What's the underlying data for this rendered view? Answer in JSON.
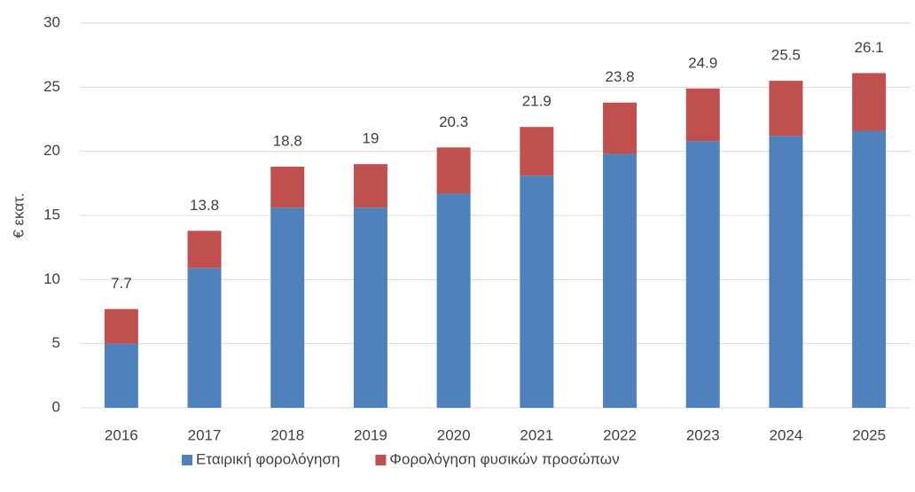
{
  "chart_data": {
    "type": "stacked_bar",
    "y_label": "€ εκατ.",
    "categories": [
      "2016",
      "2017",
      "2018",
      "2019",
      "2020",
      "2021",
      "2022",
      "2023",
      "2024",
      "2025"
    ],
    "series": [
      {
        "name": "Εταιρική φορολόγηση",
        "color": "#4f81bd",
        "values": [
          5.0,
          10.9,
          15.6,
          15.6,
          16.7,
          18.1,
          19.8,
          20.8,
          21.2,
          21.6
        ]
      },
      {
        "name": "Φορολόγηση φυσικών προσώπων",
        "color": "#c0504d",
        "values": [
          2.7,
          2.9,
          3.2,
          3.4,
          3.6,
          3.8,
          4.0,
          4.1,
          4.3,
          4.5
        ]
      }
    ],
    "totals": [
      7.7,
      13.8,
      18.8,
      19,
      20.3,
      21.9,
      23.8,
      24.9,
      25.5,
      26.1
    ],
    "ylim": [
      0,
      30
    ],
    "yticks": [
      0,
      5,
      10,
      15,
      20,
      25,
      30
    ],
    "grid": true,
    "legend": "bottom"
  }
}
